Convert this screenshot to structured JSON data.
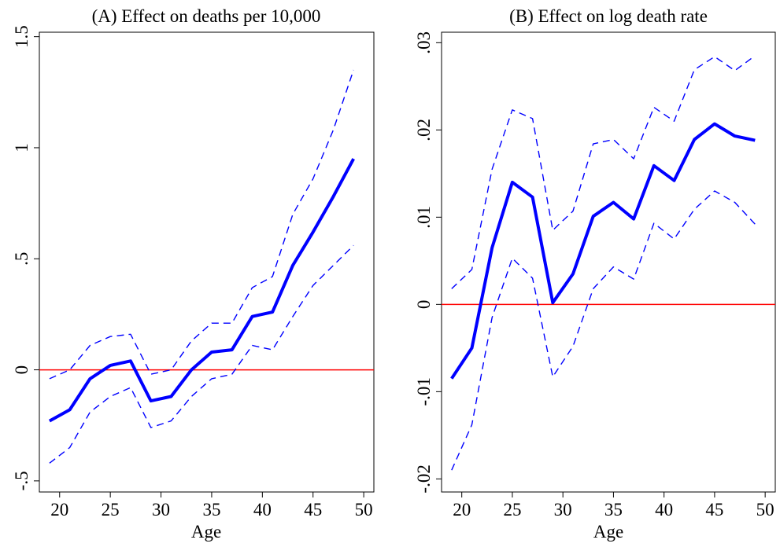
{
  "chart_data": [
    {
      "type": "line",
      "title": "(A) Effect on deaths per 10,000",
      "xlabel": "Age",
      "ylabel": "",
      "xlim": [
        18,
        51
      ],
      "ylim": [
        -0.55,
        1.52
      ],
      "xticks": [
        20,
        25,
        30,
        35,
        40,
        45,
        50
      ],
      "xtick_labels": [
        "20",
        "25",
        "30",
        "35",
        "40",
        "45",
        "50"
      ],
      "yticks": [
        -0.5,
        0,
        0.5,
        1,
        1.5
      ],
      "ytick_labels": [
        "-.5",
        "0",
        ".5",
        "1",
        "1.5"
      ],
      "grid": false,
      "reference_line": {
        "y": 0,
        "color": "#ff0000"
      },
      "x": [
        19,
        21,
        23,
        25,
        27,
        29,
        31,
        33,
        35,
        37,
        39,
        41,
        43,
        45,
        47,
        49
      ],
      "series": [
        {
          "role": "estimate",
          "color": "#0000ff",
          "style": "solid",
          "values": [
            -0.23,
            -0.18,
            -0.04,
            0.02,
            0.04,
            -0.14,
            -0.12,
            0.0,
            0.08,
            0.09,
            0.24,
            0.26,
            0.47,
            0.62,
            0.78,
            0.95
          ]
        },
        {
          "role": "upper_ci",
          "color": "#0000ff",
          "style": "dashed",
          "values": [
            -0.04,
            0.0,
            0.11,
            0.15,
            0.16,
            -0.02,
            0.0,
            0.13,
            0.21,
            0.21,
            0.37,
            0.42,
            0.7,
            0.86,
            1.08,
            1.35
          ]
        },
        {
          "role": "lower_ci",
          "color": "#0000ff",
          "style": "dashed",
          "values": [
            -0.42,
            -0.35,
            -0.19,
            -0.12,
            -0.08,
            -0.26,
            -0.23,
            -0.12,
            -0.04,
            -0.02,
            0.11,
            0.09,
            0.24,
            0.38,
            0.47,
            0.56
          ]
        }
      ]
    },
    {
      "type": "line",
      "title": "(B) Effect on log death rate",
      "xlabel": "Age",
      "ylabel": "",
      "xlim": [
        18,
        51
      ],
      "ylim": [
        -0.0215,
        0.0312
      ],
      "xticks": [
        20,
        25,
        30,
        35,
        40,
        45,
        50
      ],
      "xtick_labels": [
        "20",
        "25",
        "30",
        "35",
        "40",
        "45",
        "50"
      ],
      "yticks": [
        -0.02,
        -0.01,
        0,
        0.01,
        0.02,
        0.03
      ],
      "ytick_labels": [
        "-.02",
        "-.01",
        "0",
        ".01",
        ".02",
        ".03"
      ],
      "grid": false,
      "reference_line": {
        "y": 0,
        "color": "#ff0000"
      },
      "x": [
        19,
        21,
        23,
        25,
        27,
        29,
        31,
        33,
        35,
        37,
        39,
        41,
        43,
        45,
        47,
        49
      ],
      "series": [
        {
          "role": "estimate",
          "color": "#0000ff",
          "style": "solid",
          "values": [
            -0.0085,
            -0.005,
            0.0065,
            0.014,
            0.0123,
            0.0002,
            0.0035,
            0.0101,
            0.0117,
            0.0098,
            0.0159,
            0.0142,
            0.0189,
            0.0207,
            0.0193,
            0.0188
          ]
        },
        {
          "role": "upper_ci",
          "color": "#0000ff",
          "style": "dashed",
          "values": [
            0.0018,
            0.004,
            0.0155,
            0.0223,
            0.0213,
            0.0085,
            0.0107,
            0.0184,
            0.0189,
            0.0167,
            0.0226,
            0.021,
            0.0269,
            0.0284,
            0.0268,
            0.0285
          ]
        },
        {
          "role": "lower_ci",
          "color": "#0000ff",
          "style": "dashed",
          "values": [
            -0.019,
            -0.0138,
            -0.0015,
            0.0053,
            0.003,
            -0.0083,
            -0.0048,
            0.0018,
            0.0043,
            0.0029,
            0.0093,
            0.0075,
            0.0109,
            0.013,
            0.0117,
            0.0092
          ]
        }
      ]
    }
  ]
}
